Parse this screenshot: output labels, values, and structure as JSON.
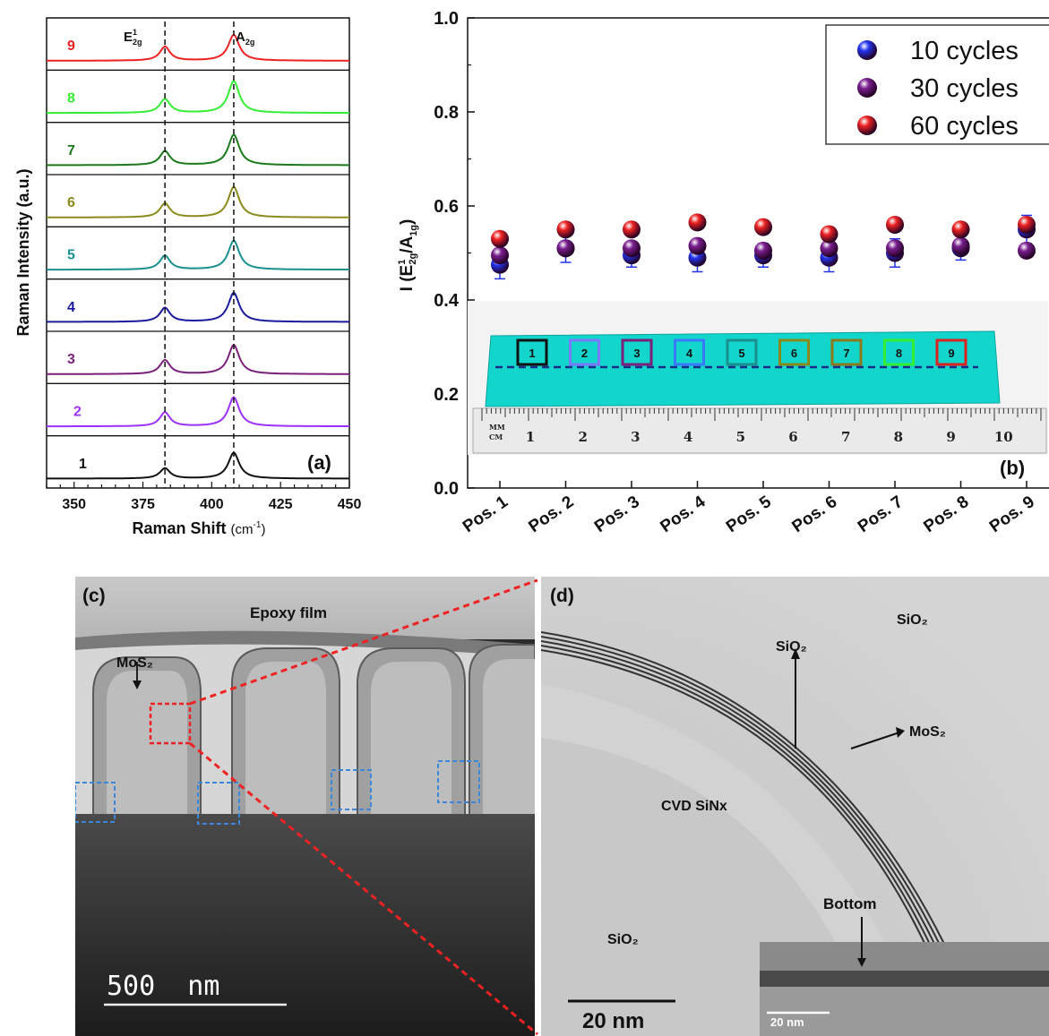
{
  "figure": {
    "panel_a_label": "(a)",
    "panel_b_label": "(b)",
    "panel_c_label": "(c)",
    "panel_d_label": "(d)"
  },
  "chart_data": [
    {
      "type": "line",
      "panel": "(a)",
      "xlabel": "Raman Shift (cm⁻¹)",
      "ylabel": "Raman Intensity (a.u.)",
      "xlim": [
        340,
        450
      ],
      "xticks": [
        350,
        375,
        400,
        425,
        450
      ],
      "peaks": [
        {
          "label": "E¹2g",
          "position": 383
        },
        {
          "label": "A2g",
          "position": 408
        }
      ],
      "series": [
        {
          "name": "1",
          "color": "#111111",
          "e_height": 0.22,
          "a_height": 0.55
        },
        {
          "name": "2",
          "color": "#9b30ff",
          "e_height": 0.3,
          "a_height": 0.62
        },
        {
          "name": "3",
          "color": "#7b1f7b",
          "e_height": 0.3,
          "a_height": 0.62
        },
        {
          "name": "4",
          "color": "#1a1a9c",
          "e_height": 0.3,
          "a_height": 0.62
        },
        {
          "name": "5",
          "color": "#1a8f8f",
          "e_height": 0.3,
          "a_height": 0.62
        },
        {
          "name": "6",
          "color": "#8a8a1a",
          "e_height": 0.3,
          "a_height": 0.65
        },
        {
          "name": "7",
          "color": "#1a7a1a",
          "e_height": 0.3,
          "a_height": 0.65
        },
        {
          "name": "8",
          "color": "#33ee33",
          "e_height": 0.3,
          "a_height": 0.68
        },
        {
          "name": "9",
          "color": "#ee2222",
          "e_height": 0.3,
          "a_height": 0.55
        }
      ]
    },
    {
      "type": "scatter",
      "panel": "(b)",
      "ylabel": "I (E¹2g/A1g)",
      "ylim": [
        0.0,
        1.0
      ],
      "yticks": [
        "0.0",
        "0.2",
        "0.4",
        "0.6",
        "0.8",
        "1.0"
      ],
      "categories": [
        "Pos. 1",
        "Pos. 2",
        "Pos. 3",
        "Pos. 4",
        "Pos. 5",
        "Pos. 6",
        "Pos. 7",
        "Pos. 8",
        "Pos. 9"
      ],
      "legend_position": "top-right",
      "series": [
        {
          "name": "10 cycles",
          "color": "#2233ee",
          "values": [
            0.475,
            0.51,
            0.495,
            0.49,
            0.495,
            0.49,
            0.5,
            0.51,
            0.55
          ],
          "err": [
            0.03,
            0.03,
            0.025,
            0.03,
            0.025,
            0.03,
            0.03,
            0.025,
            0.03
          ]
        },
        {
          "name": "30 cycles",
          "color": "#7a1f8f",
          "values": [
            0.495,
            0.51,
            0.51,
            0.515,
            0.505,
            0.51,
            0.51,
            0.515,
            0.505
          ],
          "err": [
            0,
            0,
            0,
            0,
            0,
            0,
            0,
            0,
            0
          ]
        },
        {
          "name": "60 cycles",
          "color": "#ee2222",
          "values": [
            0.53,
            0.55,
            0.55,
            0.565,
            0.555,
            0.54,
            0.56,
            0.55,
            0.56
          ],
          "err": [
            0,
            0,
            0,
            0,
            0,
            0,
            0,
            0,
            0
          ]
        }
      ]
    }
  ],
  "inset_b": {
    "boxes": [
      "1",
      "2",
      "3",
      "4",
      "5",
      "6",
      "7",
      "8",
      "9"
    ],
    "box_colors": [
      "#111111",
      "#7a7aff",
      "#7b1f7b",
      "#3a7aff",
      "#1a8f8f",
      "#8a8a1a",
      "#8a7a1a",
      "#33ee33",
      "#dd2222"
    ],
    "ruler_labels": [
      "1",
      "2",
      "3",
      "4",
      "5",
      "6",
      "7",
      "8",
      "9",
      "10"
    ],
    "ruler_unit_top": "MM",
    "ruler_unit_bottom": "CM"
  },
  "panel_c": {
    "epoxy_label": "Epoxy film",
    "mos2_label": "MoS₂",
    "scale_bar": "500  nm"
  },
  "panel_d": {
    "sio2_top_right": "SiO₂",
    "sio2_arrow": "SiO₂",
    "mos2_arrow": "MoS₂",
    "cvd_label": "CVD SiNx",
    "sio2_bottom_left": "SiO₂",
    "bottom_label": "Bottom",
    "scale_bar": "20 nm",
    "inset_scale_bar": "20 nm"
  }
}
